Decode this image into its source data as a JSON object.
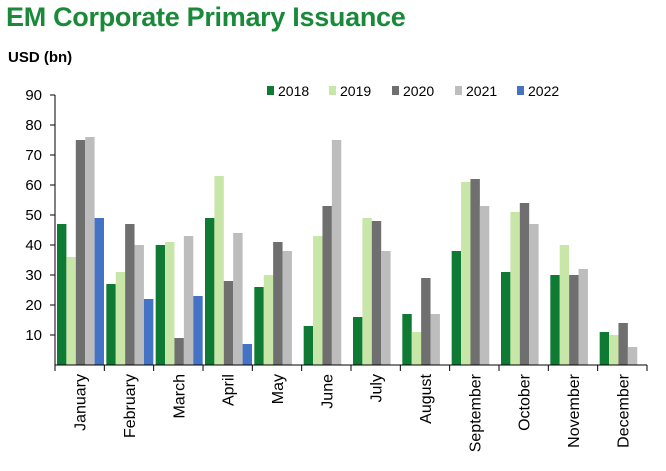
{
  "chart_data": {
    "type": "bar",
    "title": "EM Corporate Primary Issuance",
    "ylabel": "USD (bn)",
    "xlabel": "",
    "ylim": [
      0,
      90
    ],
    "yticks": [
      10,
      20,
      30,
      40,
      50,
      60,
      70,
      80,
      90
    ],
    "grid": false,
    "legend_position": "top-right",
    "categories": [
      "January",
      "February",
      "March",
      "April",
      "May",
      "June",
      "July",
      "August",
      "September",
      "October",
      "November",
      "December"
    ],
    "series": [
      {
        "name": "2018",
        "color": "#0e7a33",
        "values": [
          47,
          27,
          40,
          49,
          26,
          13,
          16,
          17,
          38,
          31,
          30,
          11
        ]
      },
      {
        "name": "2019",
        "color": "#c8e6a8",
        "values": [
          36,
          31,
          41,
          63,
          30,
          43,
          49,
          11,
          61,
          51,
          40,
          10
        ]
      },
      {
        "name": "2020",
        "color": "#6f6f6f",
        "values": [
          75,
          47,
          9,
          28,
          41,
          53,
          48,
          29,
          62,
          54,
          30,
          14
        ]
      },
      {
        "name": "2021",
        "color": "#bdbdbd",
        "values": [
          76,
          40,
          43,
          44,
          38,
          75,
          38,
          17,
          53,
          47,
          32,
          6
        ]
      },
      {
        "name": "2022",
        "color": "#4472c4",
        "values": [
          49,
          22,
          23,
          7,
          null,
          null,
          null,
          null,
          null,
          null,
          null,
          null
        ]
      }
    ]
  }
}
